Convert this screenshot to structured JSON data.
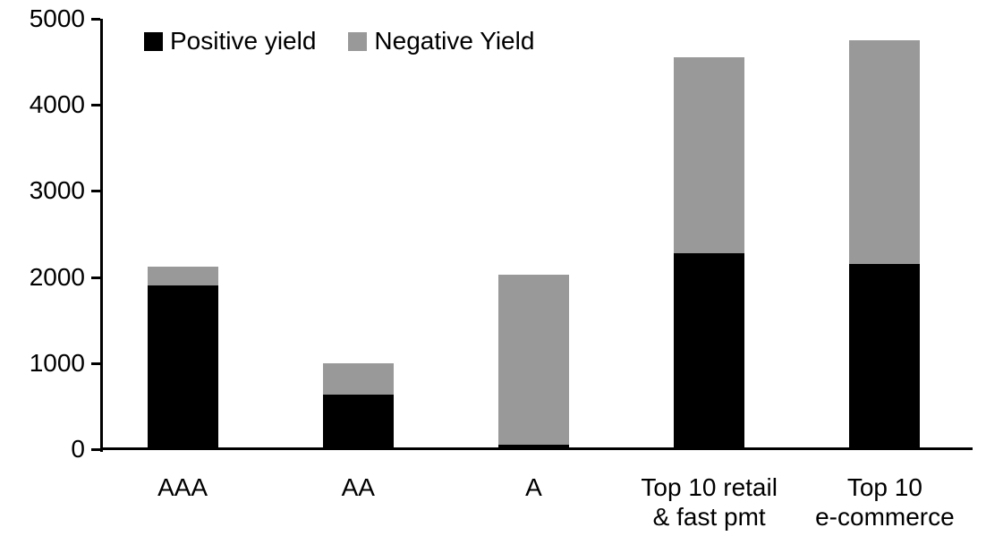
{
  "chart_data": {
    "type": "bar",
    "stacked": true,
    "title": "",
    "xlabel": "",
    "ylabel": "",
    "categories": [
      "AAA",
      "AA",
      "A",
      "Top 10 retail\n& fast pmt",
      "Top 10\ne-commerce"
    ],
    "series": [
      {
        "name": "Positive yield",
        "color": "#000000",
        "values": [
          1900,
          630,
          50,
          2280,
          2150
        ]
      },
      {
        "name": "Negative Yield",
        "color": "#999999",
        "values": [
          220,
          370,
          1980,
          2270,
          2600
        ]
      }
    ],
    "totals": [
      2120,
      1000,
      2030,
      4550,
      4750
    ],
    "ylim": [
      0,
      5000
    ],
    "yticks": [
      0,
      1000,
      2000,
      3000,
      4000,
      5000
    ],
    "grid": false,
    "legend_position": "top-left",
    "background": "#ffffff",
    "axis_color": "#000000"
  }
}
